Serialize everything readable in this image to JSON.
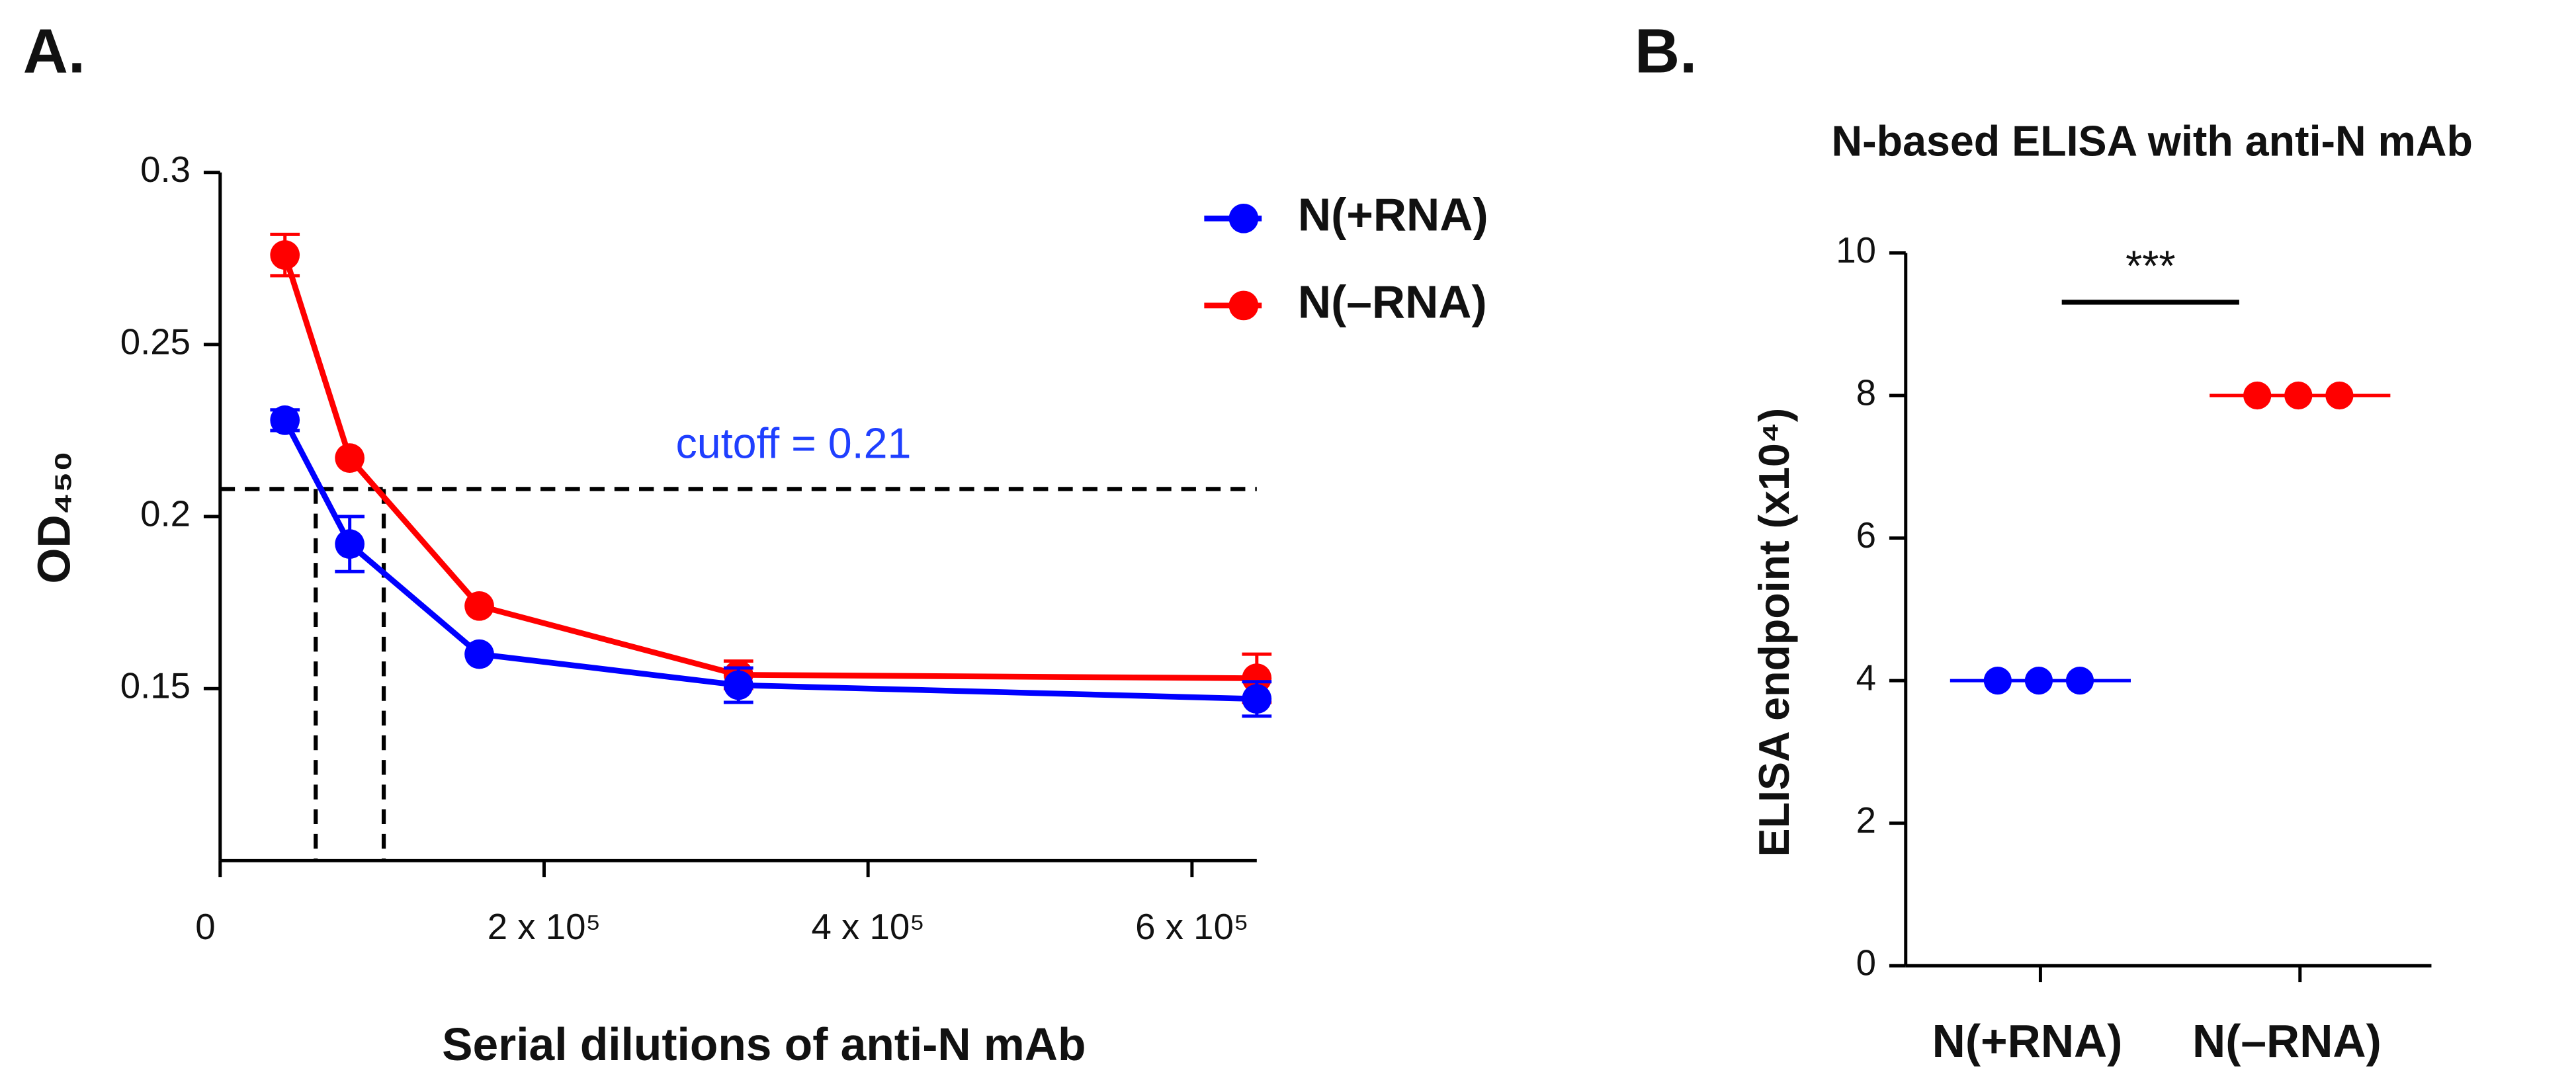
{
  "chart_data": [
    {
      "type": "line",
      "panel": "A.",
      "xlabel": "Serial dilutions of anti-N mAb",
      "ylabel": "OD₄₅₀",
      "x": [
        40000,
        80000,
        160000,
        320000,
        640000
      ],
      "series": [
        {
          "name": "N(+RNA)",
          "color": "#0000ff",
          "values": [
            0.228,
            0.192,
            0.16,
            0.151,
            0.147
          ],
          "errors": [
            0.003,
            0.008,
            0,
            0.005,
            0.005
          ]
        },
        {
          "name": "N(–RNA)",
          "color": "#ff0000",
          "values": [
            0.276,
            0.217,
            0.174,
            0.154,
            0.153
          ],
          "errors": [
            0.006,
            0,
            0,
            0.004,
            0.007
          ]
        }
      ],
      "xlim": [
        0,
        640000
      ],
      "xticks": [
        0,
        {
          "value": 200000,
          "label": "2 x 10⁵"
        },
        {
          "value": 400000,
          "label": "4 x 10⁵"
        },
        {
          "value": 600000,
          "label": "6 x 10⁵"
        }
      ],
      "ylim": [
        0.1,
        0.3
      ],
      "yticks": [
        0.15,
        0.2,
        0.25,
        0.3
      ],
      "cutoff": 0.208,
      "cutoff_x": [
        59000,
        101000
      ],
      "annotation": "cutoff = 0.21",
      "legend": "upper right"
    },
    {
      "type": "dot",
      "panel": "B.",
      "title": "N-based ELISA with anti-N mAb",
      "ylabel": "ELISA endpoint (x10⁴)",
      "categories": [
        "N(+RNA)",
        "N(–RNA)"
      ],
      "values": [
        [
          4,
          4,
          4
        ],
        [
          8,
          8,
          8
        ]
      ],
      "means": [
        4,
        8
      ],
      "colors": [
        "#0000ff",
        "#ff0000"
      ],
      "ylim": [
        0,
        10
      ],
      "yticks": [
        0,
        2,
        4,
        6,
        8,
        10
      ],
      "annotation": "***"
    }
  ]
}
